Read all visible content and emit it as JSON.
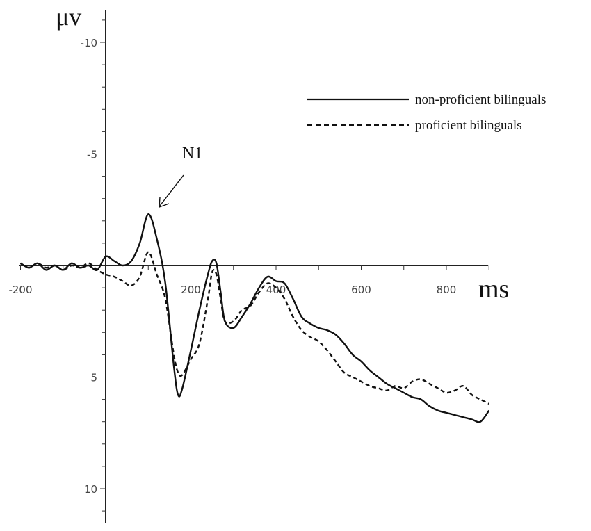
{
  "chart_data": {
    "type": "line",
    "title": "",
    "xlabel": "ms",
    "ylabel": "μv",
    "x_ticks": [
      -200,
      200,
      400,
      600,
      800
    ],
    "x_tick_labels": [
      "-200",
      "200",
      "400",
      "600",
      "800"
    ],
    "y_ticks": [
      -10,
      -5,
      5,
      10
    ],
    "y_tick_labels": [
      "-10",
      "-5",
      "5",
      "10"
    ],
    "xlim": [
      -200,
      900
    ],
    "ylim": [
      -11.5,
      11.5
    ],
    "y_inverted": true,
    "grid": false,
    "legend_position": "top-right",
    "annotation": {
      "text": "N1",
      "x": 100,
      "y": -2.3
    },
    "series": [
      {
        "name": "non-proficient bilinguals",
        "style": "solid",
        "x": [
          -200,
          -180,
          -160,
          -140,
          -120,
          -100,
          -80,
          -60,
          -40,
          -20,
          0,
          20,
          40,
          60,
          80,
          100,
          120,
          140,
          160,
          170,
          180,
          200,
          220,
          240,
          250,
          260,
          270,
          280,
          300,
          320,
          340,
          360,
          380,
          400,
          420,
          440,
          460,
          480,
          500,
          520,
          540,
          560,
          580,
          600,
          620,
          640,
          660,
          680,
          700,
          720,
          740,
          760,
          780,
          800,
          820,
          840,
          860,
          880,
          900
        ],
        "y": [
          -0.1,
          0.1,
          -0.1,
          0.2,
          0.0,
          0.2,
          -0.1,
          0.1,
          0.0,
          0.2,
          -0.4,
          -0.2,
          0.0,
          -0.2,
          -1.0,
          -2.3,
          -1.2,
          0.8,
          4.5,
          5.8,
          5.5,
          3.8,
          2.0,
          0.4,
          -0.2,
          -0.1,
          1.2,
          2.5,
          2.8,
          2.3,
          1.7,
          1.0,
          0.5,
          0.7,
          0.8,
          1.5,
          2.3,
          2.6,
          2.8,
          2.9,
          3.1,
          3.5,
          4.0,
          4.3,
          4.7,
          5.0,
          5.3,
          5.5,
          5.7,
          5.9,
          6.0,
          6.3,
          6.5,
          6.6,
          6.7,
          6.8,
          6.9,
          7.0,
          6.5
        ]
      },
      {
        "name": "proficient bilinguals",
        "style": "dashed",
        "x": [
          -200,
          -180,
          -160,
          -140,
          -120,
          -100,
          -80,
          -60,
          -40,
          -20,
          0,
          20,
          40,
          60,
          80,
          100,
          120,
          140,
          160,
          170,
          180,
          200,
          220,
          240,
          250,
          260,
          270,
          280,
          300,
          320,
          340,
          360,
          380,
          400,
          420,
          440,
          460,
          480,
          500,
          520,
          540,
          560,
          580,
          600,
          620,
          640,
          660,
          680,
          700,
          720,
          740,
          760,
          780,
          800,
          820,
          840,
          860,
          880,
          900
        ],
        "y": [
          -0.1,
          0.1,
          -0.1,
          0.1,
          0.0,
          0.2,
          0.0,
          0.1,
          -0.1,
          0.2,
          0.4,
          0.5,
          0.7,
          0.9,
          0.5,
          -0.6,
          0.4,
          1.5,
          4.0,
          4.8,
          4.9,
          4.2,
          3.5,
          1.5,
          0.3,
          0.4,
          1.5,
          2.5,
          2.5,
          2.0,
          1.8,
          1.2,
          0.8,
          1.0,
          1.5,
          2.3,
          2.9,
          3.2,
          3.4,
          3.8,
          4.3,
          4.8,
          5.0,
          5.2,
          5.4,
          5.5,
          5.6,
          5.4,
          5.5,
          5.2,
          5.1,
          5.3,
          5.5,
          5.7,
          5.6,
          5.4,
          5.8,
          6.0,
          6.2
        ]
      }
    ]
  }
}
